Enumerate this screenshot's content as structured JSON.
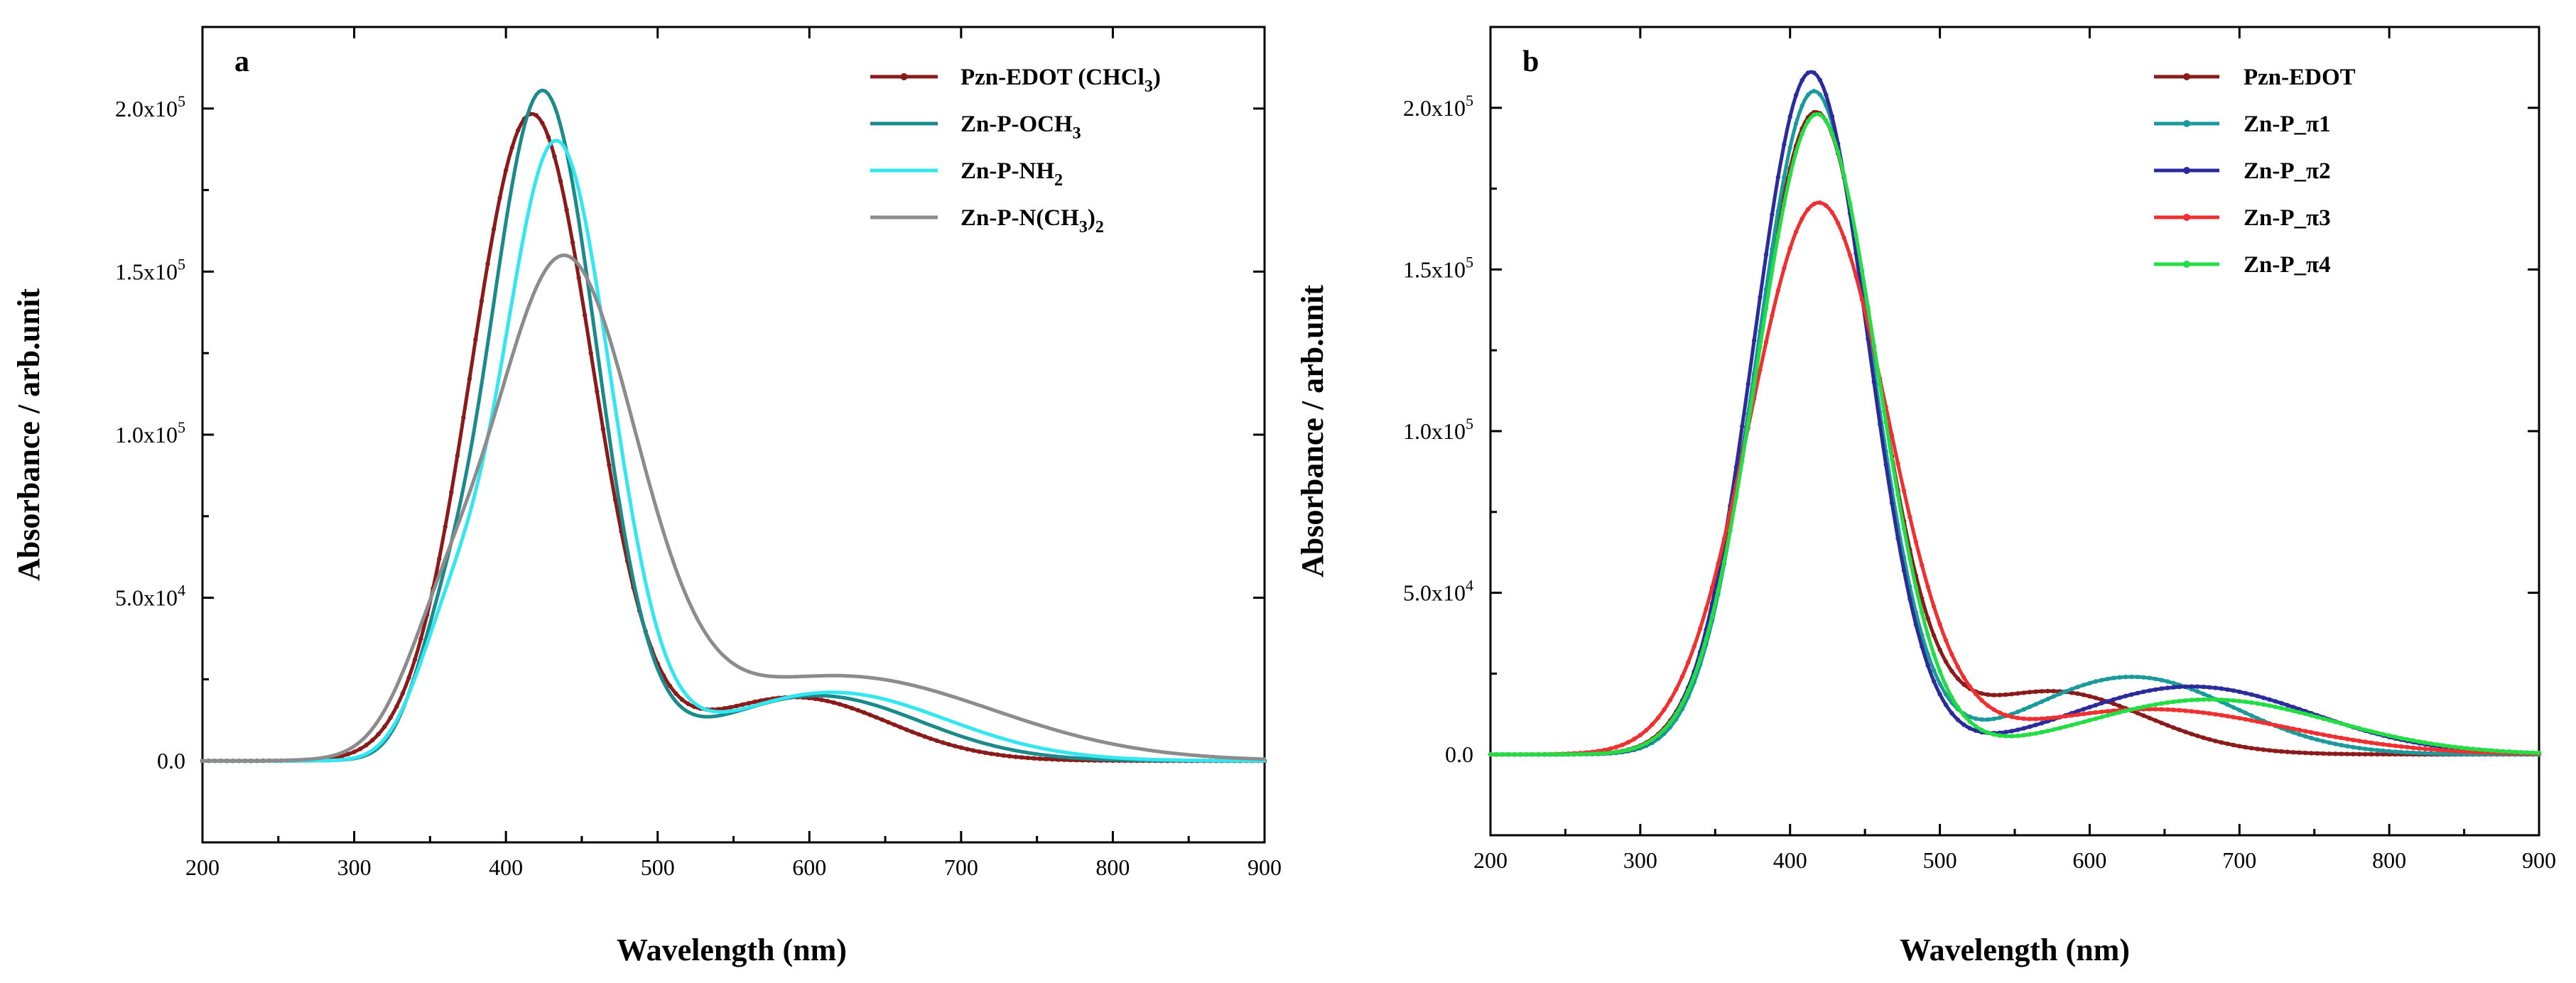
{
  "chart_data": [
    {
      "type": "line",
      "panel_label": "a",
      "xlabel": "Wavelength (nm)",
      "ylabel": "Absorbance / arb.unit",
      "xlim": [
        200,
        900
      ],
      "ylim": [
        -25000,
        225000
      ],
      "xticks": [
        200,
        300,
        400,
        500,
        600,
        700,
        800,
        900
      ],
      "yticks": [
        0,
        50000,
        100000,
        150000,
        200000
      ],
      "xtick_labels": [
        "200",
        "300",
        "400",
        "500",
        "600",
        "700",
        "800",
        "900"
      ],
      "ytick_labels": [
        {
          "mant": "0.0",
          "exp": ""
        },
        {
          "mant": "5.0x10",
          "exp": "4"
        },
        {
          "mant": "1.0x10",
          "exp": "5"
        },
        {
          "mant": "1.5x10",
          "exp": "5"
        },
        {
          "mant": "2.0x10",
          "exp": "5"
        }
      ],
      "legend_position": "top-right",
      "series": [
        {
          "name": "Pzn-EDOT (CHCl",
          "sub": "3",
          "after": ")",
          "color": "#8b1a1a",
          "marker": true,
          "peaks": [
            {
              "c": 417,
              "a": 198000,
              "s": 40
            },
            {
              "c": 590,
              "a": 19500,
              "s": 62
            }
          ]
        },
        {
          "name": "Zn-P-OCH",
          "sub": "3",
          "after": "",
          "color": "#1a8a8a",
          "marker": false,
          "peaks": [
            {
              "c": 424,
              "a": 205000,
              "s": 36
            },
            {
              "c": 355,
              "a": 18000,
              "s": 18
            },
            {
              "c": 605,
              "a": 20000,
              "s": 68
            }
          ]
        },
        {
          "name": "Zn-P-NH",
          "sub": "2",
          "after": "",
          "color": "#33e6f0",
          "marker": false,
          "peaks": [
            {
              "c": 433,
              "a": 189000,
              "s": 36
            },
            {
              "c": 360,
              "a": 28000,
              "s": 22
            },
            {
              "c": 615,
              "a": 21000,
              "s": 75
            }
          ]
        },
        {
          "name": "Zn-P-N(CH",
          "sub": "3",
          "after": ")",
          "sub2": "2",
          "color": "#8c8c8c",
          "marker": false,
          "peaks": [
            {
              "c": 437,
              "a": 150000,
              "s": 48
            },
            {
              "c": 355,
              "a": 20000,
              "s": 25
            },
            {
              "c": 620,
              "a": 26000,
              "s": 100
            }
          ]
        }
      ]
    },
    {
      "type": "line",
      "panel_label": "b",
      "xlabel": "Wavelength (nm)",
      "ylabel": "Absorbance / arb.unit",
      "xlim": [
        200,
        900
      ],
      "ylim": [
        -25000,
        225000
      ],
      "xticks": [
        200,
        300,
        400,
        500,
        600,
        700,
        800,
        900
      ],
      "yticks": [
        0,
        50000,
        100000,
        150000,
        200000
      ],
      "xtick_labels": [
        "200",
        "300",
        "400",
        "500",
        "600",
        "700",
        "800",
        "900"
      ],
      "ytick_labels": [
        {
          "mant": "0.0",
          "exp": ""
        },
        {
          "mant": "5.0x10",
          "exp": "4"
        },
        {
          "mant": "1.0x10",
          "exp": "5"
        },
        {
          "mant": "1.5x10",
          "exp": "5"
        },
        {
          "mant": "2.0x10",
          "exp": "5"
        }
      ],
      "legend_position": "top-right",
      "series": [
        {
          "name": "Pzn-EDOT",
          "sub": "",
          "after": "",
          "color": "#8b1a1a",
          "marker": true,
          "peaks": [
            {
              "c": 417,
              "a": 198000,
              "s": 40
            },
            {
              "c": 575,
              "a": 19500,
              "s": 62
            }
          ]
        },
        {
          "name": "Zn-P_π1",
          "sub": "",
          "after": "",
          "color": "#1a9a9a",
          "marker": true,
          "peaks": [
            {
              "c": 416,
              "a": 205000,
              "s": 38
            },
            {
              "c": 628,
              "a": 24000,
              "s": 68
            }
          ]
        },
        {
          "name": "Zn-P_π2",
          "sub": "",
          "after": "",
          "color": "#2b2b9b",
          "marker": true,
          "peaks": [
            {
              "c": 414,
              "a": 211000,
              "s": 38
            },
            {
              "c": 668,
              "a": 21000,
              "s": 80
            }
          ]
        },
        {
          "name": "Zn-P_π3",
          "sub": "",
          "after": "",
          "color": "#f03030",
          "marker": true,
          "peaks": [
            {
              "c": 419,
              "a": 170000,
              "s": 46
            },
            {
              "c": 640,
              "a": 14000,
              "s": 90
            }
          ]
        },
        {
          "name": "Zn-P_π4",
          "sub": "",
          "after": "",
          "color": "#22dd44",
          "marker": true,
          "peaks": [
            {
              "c": 418,
              "a": 198000,
              "s": 40
            },
            {
              "c": 680,
              "a": 17000,
              "s": 82
            }
          ]
        }
      ]
    }
  ]
}
